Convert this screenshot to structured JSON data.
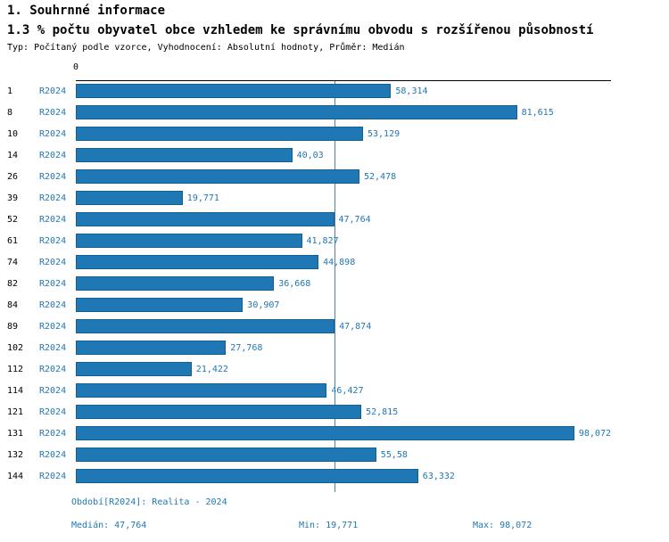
{
  "header": {
    "title": "1. Souhrnné informace",
    "subtitle": "1.3 % počtu obyvatel obce vzhledem ke správnímu obvodu s rozšířenou působností",
    "meta": "Typ: Počítaný podle vzorce, Vyhodnocení: Absolutní hodnoty, Průměr: Medián"
  },
  "chart_data": {
    "type": "bar",
    "orientation": "horizontal",
    "title": "1.3 % počtu obyvatel obce vzhledem ke správnímu obvodu s rozšířenou působností",
    "series_label": "R2024",
    "categories": [
      "1",
      "8",
      "10",
      "14",
      "26",
      "39",
      "52",
      "61",
      "74",
      "82",
      "84",
      "89",
      "102",
      "112",
      "114",
      "121",
      "131",
      "132",
      "144"
    ],
    "values": [
      58.314,
      81.615,
      53.129,
      40.03,
      52.478,
      19.771,
      47.764,
      41.827,
      44.898,
      36.668,
      30.907,
      47.874,
      27.768,
      21.422,
      46.427,
      52.815,
      98.072,
      55.58,
      63.332
    ],
    "value_labels": [
      "58,314",
      "81,615",
      "53,129",
      "40,03",
      "52,478",
      "19,771",
      "47,764",
      "41,827",
      "44,898",
      "36,668",
      "30,907",
      "47,874",
      "27,768",
      "21,422",
      "46,427",
      "52,815",
      "98,072",
      "55,58",
      "63,332"
    ],
    "xlim": [
      0,
      99
    ],
    "axis_tick_label": "0",
    "median_value": 47.764,
    "grid": false,
    "legend_position": "none",
    "bar_color": "#1f77b4",
    "accent_text_color": "#1f77b4"
  },
  "footer": {
    "period": "Období[R2024]: Realita - 2024",
    "median": "Medián: 47,764",
    "min": "Min: 19,771",
    "max": "Max: 98,072"
  }
}
